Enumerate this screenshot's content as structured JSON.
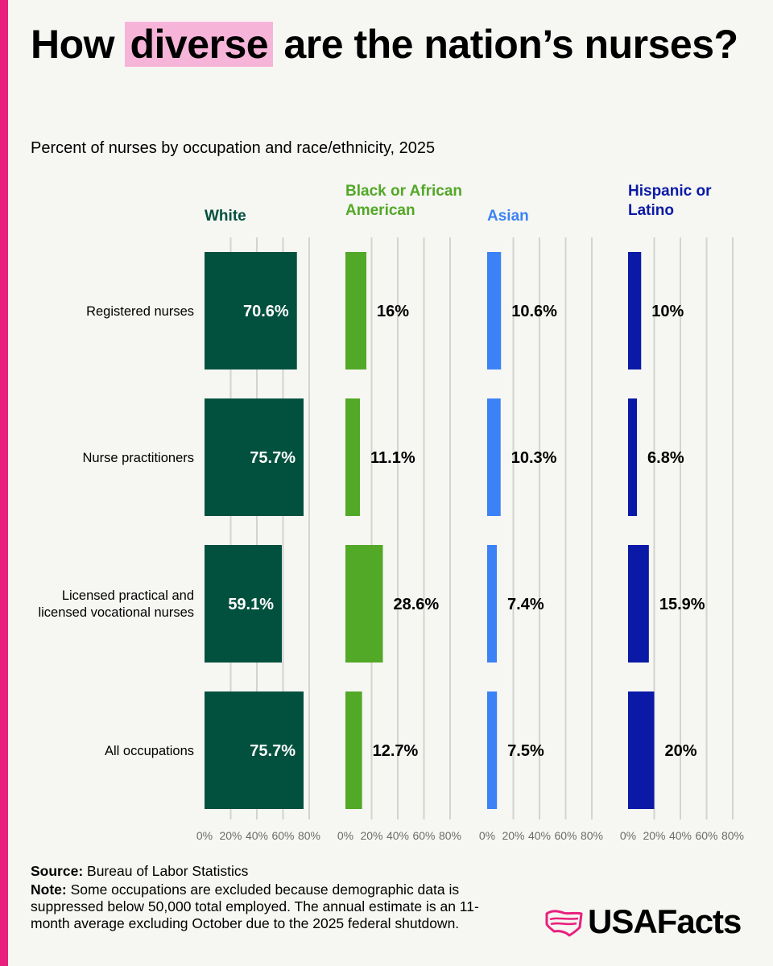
{
  "header": {
    "title_before": "How",
    "title_highlight": "diverse",
    "title_after": "are the nation’s nurses?",
    "subtitle": "Percent of nurses by occupation and race/ethnicity, 2025"
  },
  "chart_data": {
    "type": "bar",
    "orientation": "horizontal",
    "categories": [
      "Registered nurses",
      "Nurse practitioners",
      "Licensed practical and licensed vocational nurses",
      "All occupations"
    ],
    "series": [
      {
        "name": "White",
        "values": [
          70.6,
          75.7,
          59.1,
          75.7
        ],
        "labels": [
          "70.6%",
          "75.7%",
          "59.1%",
          "75.7%"
        ],
        "color": "#02513f"
      },
      {
        "name": "Black or African American",
        "values": [
          16,
          11.1,
          28.6,
          12.7
        ],
        "labels": [
          "16%",
          "11.1%",
          "28.6%",
          "12.7%"
        ],
        "color": "#52a827"
      },
      {
        "name": "Asian",
        "values": [
          10.6,
          10.3,
          7.4,
          7.5
        ],
        "labels": [
          "10.6%",
          "10.3%",
          "7.4%",
          "7.5%"
        ],
        "color": "#3b82f6"
      },
      {
        "name": "Hispanic or Latino",
        "values": [
          10,
          6.8,
          15.9,
          20
        ],
        "labels": [
          "10%",
          "6.8%",
          "15.9%",
          "20%"
        ],
        "color": "#0a1aa6"
      }
    ],
    "xlim": [
      0,
      80
    ],
    "ticks": [
      0,
      20,
      40,
      60,
      80
    ],
    "tick_labels": [
      "0%",
      "20%",
      "40%",
      "60%",
      "80%"
    ],
    "grid": true,
    "layout": "small-multiples"
  },
  "footer": {
    "source_label": "Source:",
    "source_text": "Bureau of Labor Statistics",
    "note_label": "Note:",
    "note_text": "Some occupations are excluded because demographic data is suppressed below 50,000 total employed. The annual estimate is an 11-month average excluding October due to the 2025 federal shutdown."
  },
  "logo": {
    "text": "USAFacts",
    "icon": "usa-flag-map-icon",
    "color": "#e8207e"
  }
}
